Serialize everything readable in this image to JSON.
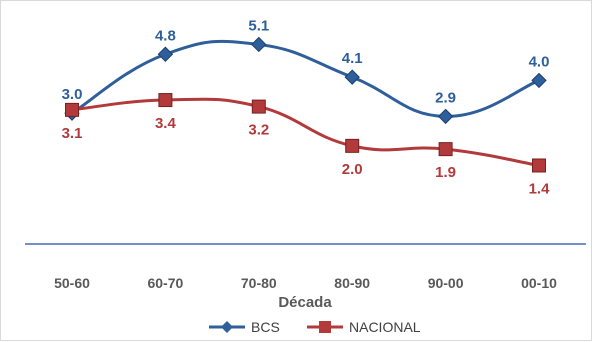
{
  "chart_data": {
    "type": "line",
    "xlabel": "Década",
    "categories": [
      "50-60",
      "60-70",
      "70-80",
      "80-90",
      "90-00",
      "00-10"
    ],
    "series": [
      {
        "name": "BCS",
        "values": [
          3.0,
          4.8,
          5.1,
          4.1,
          2.9,
          4.0
        ],
        "color": "#2e5f9b",
        "marker": "diamond",
        "labels": [
          "3.0",
          "4.8",
          "5.1",
          "4.1",
          "2.9",
          "4.0"
        ]
      },
      {
        "name": "NACIONAL",
        "values": [
          3.1,
          3.4,
          3.2,
          2.0,
          1.9,
          1.4
        ],
        "color": "#b23a3a",
        "marker": "square",
        "labels": [
          "3.1",
          "3.4",
          "3.2",
          "2.0",
          "1.9",
          "1.4"
        ]
      }
    ],
    "ylim": [
      -1.0,
      6.0
    ],
    "grid": false,
    "legend": "bottom",
    "smooth": true,
    "axis_color": "#1f4e9c"
  }
}
